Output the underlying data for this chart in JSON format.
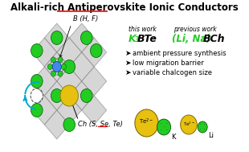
{
  "title": "Alkali-rich Antiperovskite Ionic Conductors",
  "bg_color": "#ffffff",
  "this_work_label": "this work",
  "prev_work_label": "previous work",
  "bullets": [
    "ambient pressure synthesis",
    "low migration barrier",
    "variable chalcogen size"
  ],
  "B_label": "B (H, F)",
  "Ch_label": "Ch (S, Se, Te)",
  "green_color": "#22cc22",
  "yellow_color": "#e8c010",
  "blue_color": "#4488ee",
  "teal_color": "#00aacc",
  "red_color": "#dd0000"
}
